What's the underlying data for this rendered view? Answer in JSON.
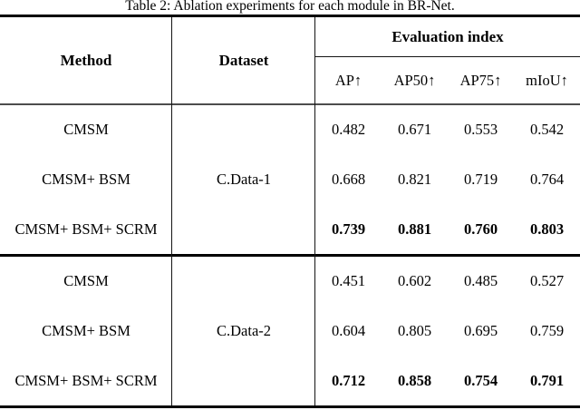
{
  "caption": "Table 2: Ablation experiments for each module in BR-Net.",
  "table": {
    "headers": {
      "method": "Method",
      "dataset": "Dataset",
      "evaluation_index": "Evaluation index",
      "metrics": [
        "AP↑",
        "AP50↑",
        "AP75↑",
        "mIoU↑"
      ]
    },
    "blocks": [
      {
        "dataset": "C.Data-1",
        "rows": [
          {
            "method": "CMSM",
            "values": [
              "0.482",
              "0.671",
              "0.553",
              "0.542"
            ]
          },
          {
            "method": "CMSM+ BSM",
            "values": [
              "0.668",
              "0.821",
              "0.719",
              "0.764"
            ]
          },
          {
            "method": "CMSM+ BSM+ SCRM",
            "values": [
              "0.739",
              "0.881",
              "0.760",
              "0.803"
            ]
          }
        ]
      },
      {
        "dataset": "C.Data-2",
        "rows": [
          {
            "method": "CMSM",
            "values": [
              "0.451",
              "0.602",
              "0.485",
              "0.527"
            ]
          },
          {
            "method": "CMSM+ BSM",
            "values": [
              "0.604",
              "0.805",
              "0.695",
              "0.759"
            ]
          },
          {
            "method": "CMSM+ BSM+ SCRM",
            "values": [
              "0.712",
              "0.858",
              "0.754",
              "0.791"
            ]
          }
        ]
      }
    ]
  }
}
